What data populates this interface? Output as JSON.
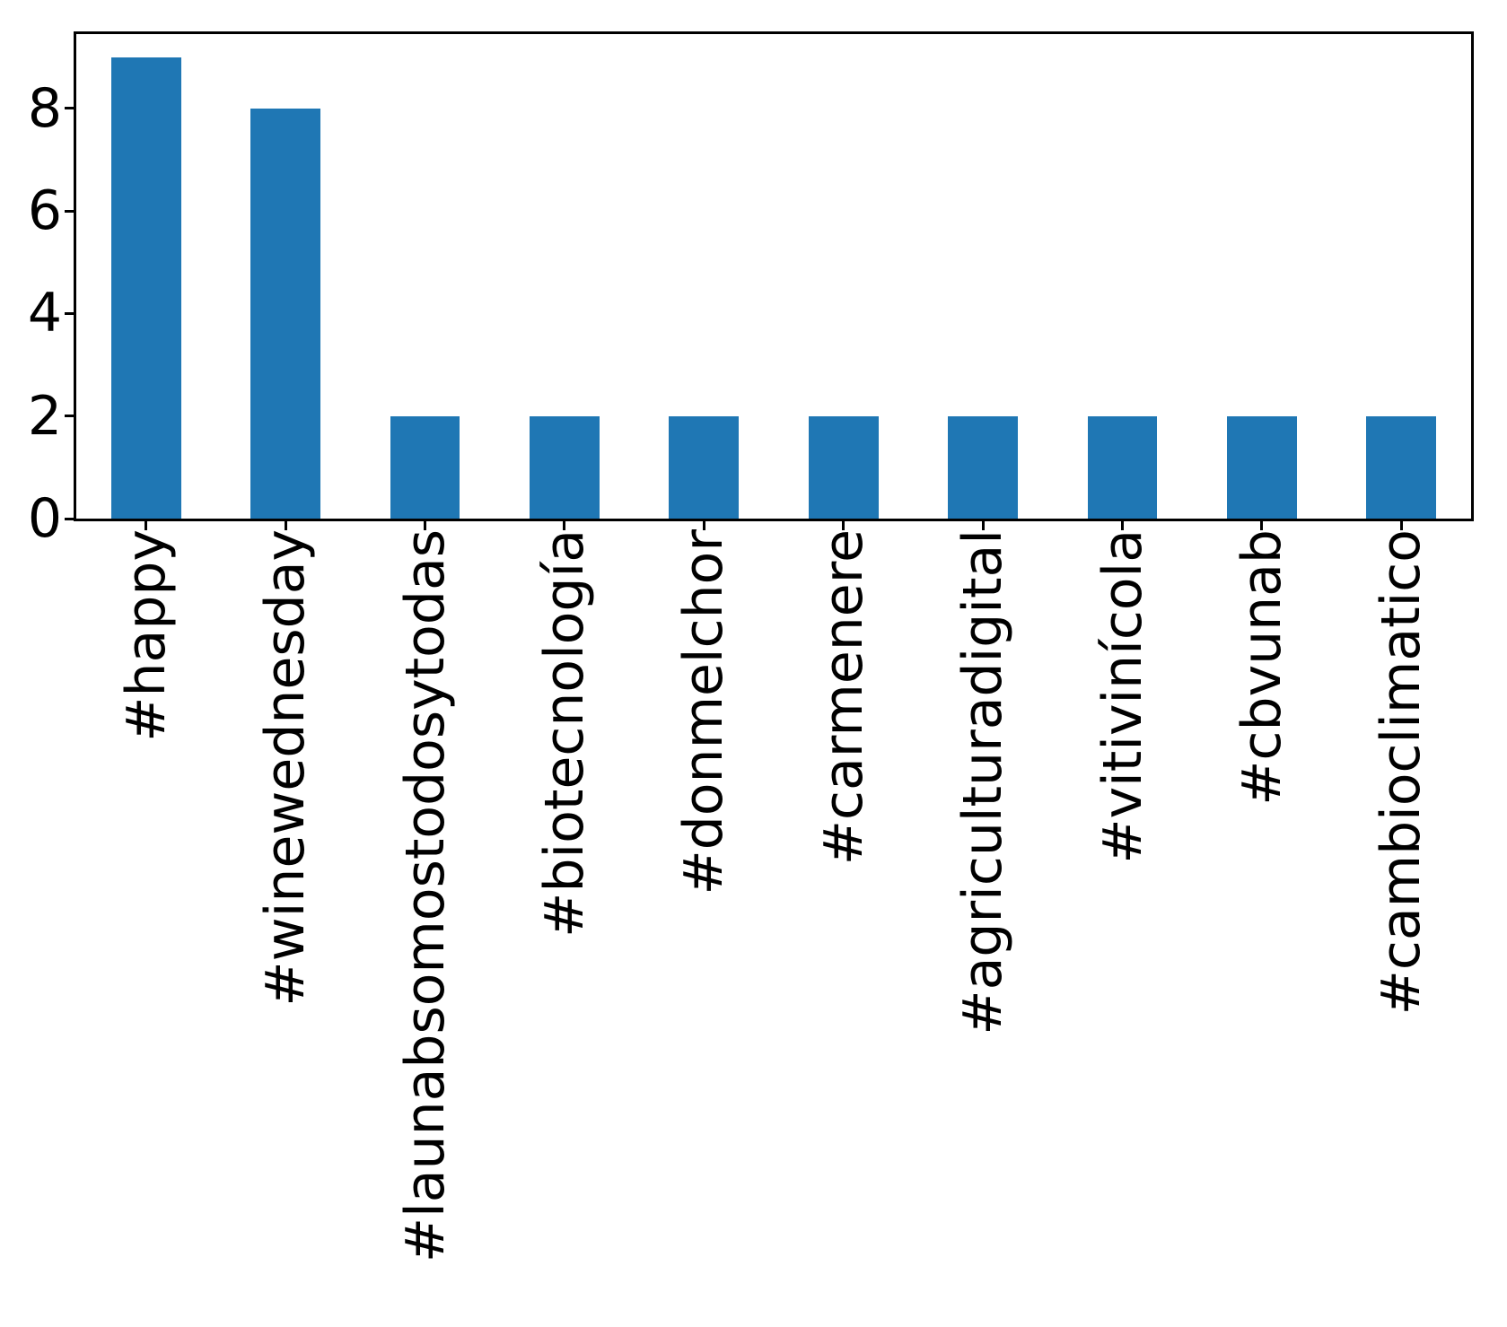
{
  "chart_data": {
    "type": "bar",
    "categories": [
      "#happy",
      "#winewednesday",
      "#launabsomostodosytodas",
      "#biotecnología",
      "#donmelchor",
      "#carmenere",
      "#agriculturadigital",
      "#vitivinícola",
      "#cbvunab",
      "#cambioclimatico"
    ],
    "values": [
      9,
      8,
      2,
      2,
      2,
      2,
      2,
      2,
      2,
      2
    ],
    "title": "",
    "xlabel": "",
    "ylabel": "",
    "ylim": [
      0,
      9.45
    ],
    "yticks": [
      0,
      2,
      4,
      6,
      8
    ],
    "x_tick_rotation": 90,
    "bar_color": "#1f77b4",
    "spine_color": "#000000",
    "bar_width_fraction": 0.5,
    "grid": false,
    "legend": false
  }
}
